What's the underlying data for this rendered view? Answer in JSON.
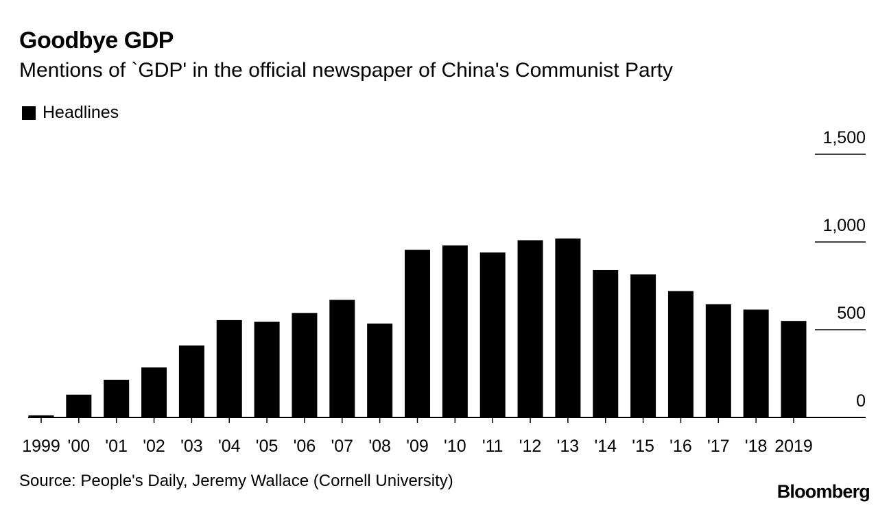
{
  "title": "Goodbye GDP",
  "subtitle": "Mentions of `GDP' in the official newspaper of China's Communist Party",
  "legend": {
    "label": "Headlines"
  },
  "source": "Source: People's Daily, Jeremy Wallace (Cornell University)",
  "brand": "Bloomberg",
  "chart_data": {
    "type": "bar",
    "title": "Goodbye GDP",
    "subtitle": "Mentions of `GDP' in the official newspaper of China's Communist Party",
    "xlabel": "",
    "ylabel": "",
    "categories": [
      "1999",
      "'00",
      "'01",
      "'02",
      "'03",
      "'04",
      "'05",
      "'06",
      "'07",
      "'08",
      "'09",
      "'10",
      "'11",
      "'12",
      "'13",
      "'14",
      "'15",
      "'16",
      "'17",
      "'18",
      "2019"
    ],
    "series": [
      {
        "name": "Headlines",
        "color": "#000000",
        "values": [
          12,
          130,
          215,
          285,
          410,
          555,
          545,
          595,
          670,
          535,
          955,
          980,
          940,
          1010,
          1020,
          840,
          815,
          720,
          645,
          615,
          550
        ]
      }
    ],
    "ylim": [
      0,
      1500
    ],
    "yticks": [
      0,
      500,
      1000,
      1500
    ],
    "ytick_labels": [
      "0",
      "500",
      "1,000",
      "1,500"
    ],
    "grid": false,
    "legend": "top-left"
  }
}
